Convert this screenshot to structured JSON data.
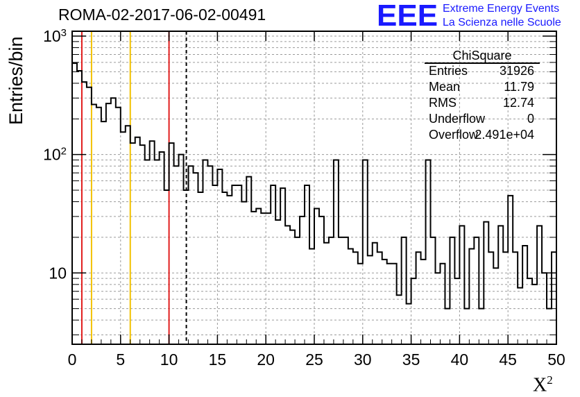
{
  "chart_data": {
    "type": "histogram",
    "title": "ROMA-02-2017-06-02-00491",
    "xlabel": "X",
    "xlabel_superscript": "2",
    "ylabel": "Entries/bin",
    "xlim": [
      0,
      50
    ],
    "ylim": [
      2.5,
      1100
    ],
    "yscale": "log",
    "grid": true,
    "bin_width": 0.5,
    "x_ticks": [
      0,
      5,
      10,
      15,
      20,
      25,
      30,
      35,
      40,
      45,
      50
    ],
    "x_tick_labels": [
      "0",
      "5",
      "10",
      "15",
      "20",
      "25",
      "30",
      "35",
      "40",
      "45",
      "50"
    ],
    "y_ticks": [
      {
        "value": 1000,
        "base": "10",
        "exp": "3"
      },
      {
        "value": 100,
        "base": "10",
        "exp": "2"
      },
      {
        "value": 10,
        "base": "10",
        "exp": ""
      }
    ],
    "counts": [
      590,
      510,
      410,
      370,
      265,
      250,
      190,
      270,
      300,
      250,
      155,
      175,
      125,
      140,
      120,
      90,
      130,
      90,
      105,
      50,
      125,
      80,
      100,
      50,
      80,
      70,
      48,
      90,
      80,
      55,
      75,
      48,
      45,
      55,
      55,
      40,
      65,
      33,
      35,
      32,
      32,
      55,
      28,
      52,
      25,
      23,
      20,
      30,
      55,
      16,
      35,
      30,
      18,
      20,
      90,
      20,
      20,
      16,
      15,
      12,
      90,
      14,
      18,
      15,
      13,
      12,
      12,
      6.5,
      20,
      5.5,
      9,
      15,
      13,
      90,
      20,
      10,
      12,
      5,
      20,
      9,
      25,
      5,
      16,
      20,
      5,
      27,
      15,
      11,
      25,
      15,
      45,
      15,
      7.5,
      17,
      9,
      8,
      25,
      10,
      5,
      15
    ],
    "vertical_lines": [
      {
        "x": 1,
        "color": "#e11d1d",
        "style": "solid"
      },
      {
        "x": 2,
        "color": "#f2c200",
        "style": "solid"
      },
      {
        "x": 6,
        "color": "#f2c200",
        "style": "solid"
      },
      {
        "x": 10,
        "color": "#e11d1d",
        "style": "solid"
      },
      {
        "x": 11.79,
        "color": "#000000",
        "style": "dashed"
      }
    ],
    "stats": {
      "title": "ChiSquare",
      "rows": [
        {
          "key": "Entries",
          "value": "31926"
        },
        {
          "key": "Mean",
          "value": "11.79"
        },
        {
          "key": "RMS",
          "value": "12.74"
        },
        {
          "key": "Underflow",
          "value": "0"
        },
        {
          "key": "Overflow",
          "value": "2.491e+04"
        }
      ]
    }
  },
  "logo": {
    "mark": "EEE",
    "line1": "Extreme Energy Events",
    "line2": "La Scienza nelle Scuole",
    "color": "#1a1aff"
  }
}
